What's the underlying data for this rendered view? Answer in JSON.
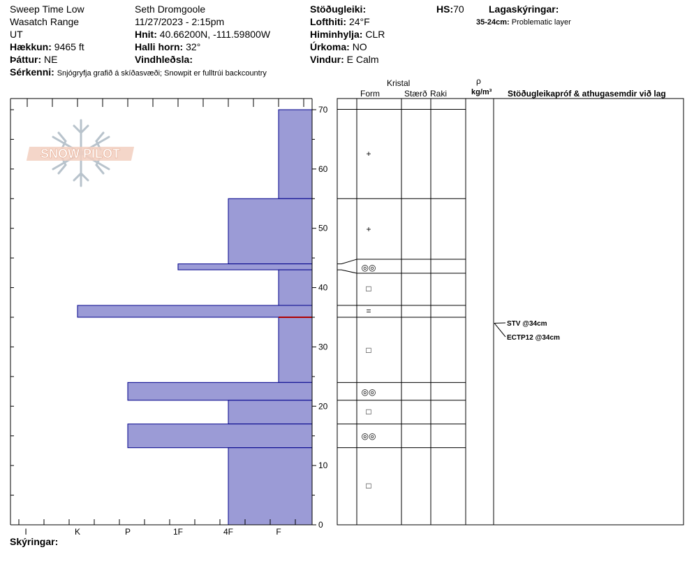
{
  "header": {
    "col1": {
      "name": "Sweep Time Low",
      "range": "Wasatch Range",
      "state": "UT",
      "elevation_label": "Hækkun:",
      "elevation_value": "9465 ft",
      "aspect_label": "Þáttur:",
      "aspect_value": "NE"
    },
    "col2": {
      "observer": "Seth Dromgoole",
      "datetime": "11/27/2023 - 2:15pm",
      "coords_label": "Hnit:",
      "coords_value": "40.66200N, -111.59800W",
      "slope_label": "Halli horn:",
      "slope_value": "32°",
      "wind_loading_label": "Vindhleðsla:",
      "wind_loading_value": ""
    },
    "col3": {
      "stability_label": "Stöðugleiki:",
      "stability_value": "",
      "air_temp_label": "Lofthiti:",
      "air_temp_value": "24°F",
      "sky_label": "Himinhylja:",
      "sky_value": "CLR",
      "precip_label": "Úrkoma:",
      "precip_value": "NO",
      "wind_label": "Vindur:",
      "wind_value": "E Calm"
    },
    "hs_label": "HS:",
    "hs_value": "70",
    "layer_notes_label": "Lagaskýringar:",
    "layer_notes_range": "35-24cm:",
    "layer_notes_text": "Problematic layer",
    "features_label": "Sérkenni:",
    "features_text": "Snjógryfja grafið á skíðasvæði; Snowpit er fulltrúi backcountry"
  },
  "logo_text": "SNOW PILOT",
  "table_headers": {
    "crystal": "Kristal",
    "form": "Form",
    "size": "Stærð",
    "moisture": "Raki",
    "rho": "ρ",
    "density_unit": "kg/m³",
    "tests": "Stöðugleikapróf & athugasemdir við lag"
  },
  "footer": {
    "legend_label": "Skýringar:"
  },
  "chart_data": {
    "type": "bar",
    "title": "",
    "ylabel": "",
    "ylim": [
      0,
      70
    ],
    "y_ticks": [
      0,
      10,
      20,
      30,
      40,
      50,
      60,
      70
    ],
    "hardness_scale": [
      "I",
      "K",
      "P",
      "1F",
      "4F",
      "F"
    ],
    "colors": {
      "bar_fill": "#9b9bd6",
      "bar_stroke": "#00008b",
      "weak_layer": "#b00000"
    },
    "layers": [
      {
        "top": 70,
        "bottom": 55,
        "hardness": "F",
        "grain": "+"
      },
      {
        "top": 55,
        "bottom": 44,
        "hardness": "4F",
        "grain": "+"
      },
      {
        "top": 44,
        "bottom": 43,
        "hardness": "1F",
        "grain": "◎◎"
      },
      {
        "top": 43,
        "bottom": 37,
        "hardness": "F",
        "grain": "□"
      },
      {
        "top": 37,
        "bottom": 35,
        "hardness": "K",
        "grain": "="
      },
      {
        "top": 35,
        "bottom": 24,
        "hardness": "F",
        "grain": "□"
      },
      {
        "top": 24,
        "bottom": 21,
        "hardness": "P",
        "grain": "◎◎"
      },
      {
        "top": 21,
        "bottom": 17,
        "hardness": "4F",
        "grain": "□"
      },
      {
        "top": 17,
        "bottom": 13,
        "hardness": "P",
        "grain": "◎◎"
      },
      {
        "top": 13,
        "bottom": 0,
        "hardness": "4F",
        "grain": "□"
      }
    ],
    "problem_layer_depth": 35,
    "tests": [
      {
        "label": "STV @34cm",
        "depth": 34
      },
      {
        "label": "ECTP12 @34cm",
        "depth": 34
      }
    ]
  }
}
